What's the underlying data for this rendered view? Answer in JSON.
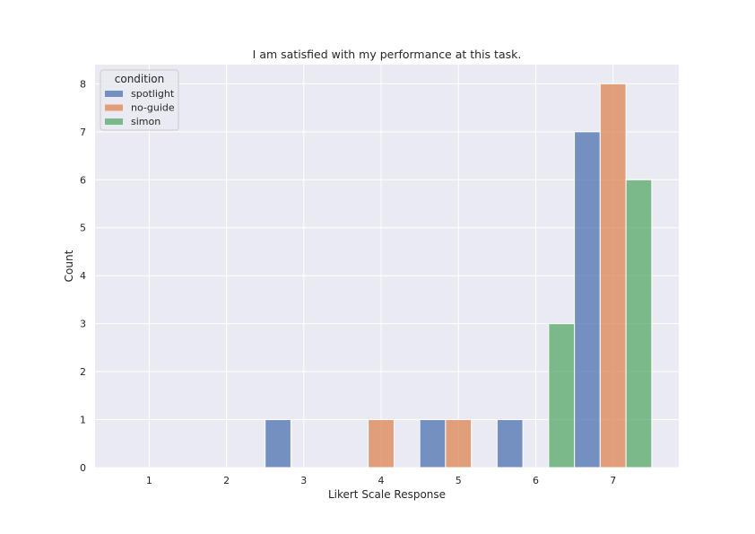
{
  "chart_data": {
    "type": "bar",
    "title": "I am satisfied with my performance at this task.",
    "xlabel": "Likert Scale Response",
    "ylabel": "Count",
    "x_ticks": [
      "1",
      "2",
      "3",
      "4",
      "5",
      "6",
      "7"
    ],
    "y_ticks": [
      "0",
      "1",
      "2",
      "3",
      "4",
      "5",
      "6",
      "7",
      "8"
    ],
    "xlim": [
      0.3,
      7.85
    ],
    "ylim": [
      0,
      8.4
    ],
    "grid": true,
    "legend": {
      "title": "condition",
      "placement": "top-left"
    },
    "series": [
      {
        "name": "spotlight",
        "color": "#4c72b0",
        "bars": [
          {
            "x_start": 2.5,
            "x_end": 2.833,
            "value": 1
          },
          {
            "x_start": 4.5,
            "x_end": 4.833,
            "value": 1
          },
          {
            "x_start": 5.5,
            "x_end": 5.833,
            "value": 1
          },
          {
            "x_start": 6.5,
            "x_end": 6.833,
            "value": 7
          }
        ]
      },
      {
        "name": "no-guide",
        "color": "#dd8452",
        "bars": [
          {
            "x_start": 3.833,
            "x_end": 4.167,
            "value": 1
          },
          {
            "x_start": 4.833,
            "x_end": 5.167,
            "value": 1
          },
          {
            "x_start": 6.833,
            "x_end": 7.167,
            "value": 8
          }
        ]
      },
      {
        "name": "simon",
        "color": "#55a868",
        "bars": [
          {
            "x_start": 6.167,
            "x_end": 6.5,
            "value": 3
          },
          {
            "x_start": 7.167,
            "x_end": 7.5,
            "value": 6
          }
        ]
      }
    ]
  }
}
